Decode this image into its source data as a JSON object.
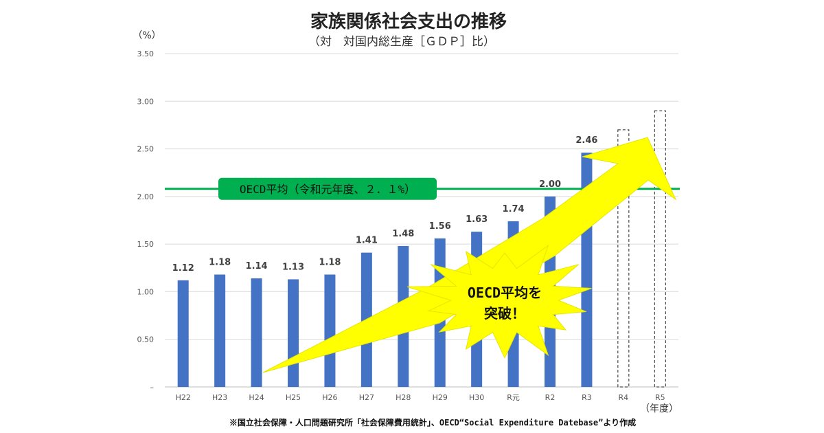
{
  "chart_data": {
    "type": "bar",
    "title": "家族関係社会支出の推移",
    "subtitle": "（対　対国内総生産［ＧＤＰ］比）",
    "ylabel": "（%）",
    "xlabel": "（年度）",
    "ylim": [
      0,
      3.5
    ],
    "yticks": [
      "–",
      "0.50",
      "1.00",
      "1.50",
      "2.00",
      "2.50",
      "3.00",
      "3.50"
    ],
    "ytick_values": [
      0,
      0.5,
      1.0,
      1.5,
      2.0,
      2.5,
      3.0,
      3.5
    ],
    "categories": [
      "H22",
      "H23",
      "H24",
      "H25",
      "H26",
      "H27",
      "H28",
      "H29",
      "H30",
      "R元",
      "R2",
      "R3",
      "R4",
      "R5"
    ],
    "values": [
      1.12,
      1.18,
      1.14,
      1.13,
      1.18,
      1.41,
      1.48,
      1.56,
      1.63,
      1.74,
      2.0,
      2.46,
      null,
      null
    ],
    "value_labels": [
      "1.12",
      "1.18",
      "1.14",
      "1.13",
      "1.18",
      "1.41",
      "1.48",
      "1.56",
      "1.63",
      "1.74",
      "2.00",
      "2.46",
      "",
      ""
    ],
    "projected_values": [
      null,
      null,
      null,
      null,
      null,
      null,
      null,
      null,
      null,
      null,
      null,
      null,
      2.7,
      2.9
    ],
    "bar_color": "#4472C4",
    "projected_style": "dashed-outline",
    "reference_line": {
      "value": 2.08,
      "label": "OECD平均（令和元年度、２．１%）",
      "color": "#00B050"
    },
    "annotation": {
      "line1": "OECD平均を",
      "line2": "突破！",
      "color": "#FFFF00"
    },
    "grid": true,
    "legend": "none"
  },
  "source": "※国立社会保障・人口問題研究所「社会保障費用統計」、OECD“Social Expenditure Datebase”より作成"
}
